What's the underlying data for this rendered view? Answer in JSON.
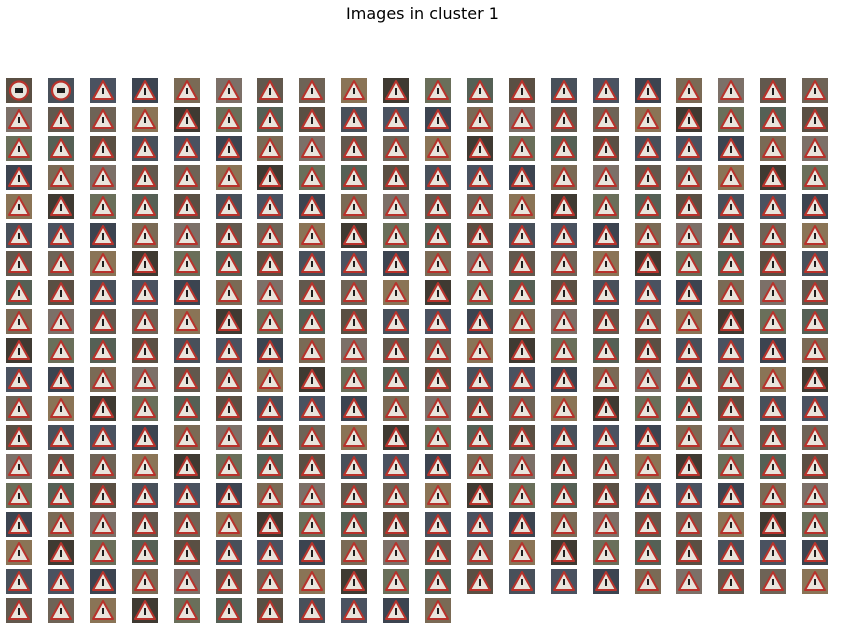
{
  "figure": {
    "title": "Images in cluster 1"
  },
  "grid": {
    "columns": 20,
    "rows": 19,
    "total_images": 371,
    "last_row_count": 11
  },
  "thumbnail_kind": {
    "first_two": "speed-limit-50-sign",
    "rest": "triangular-warning-sign"
  },
  "palette": {
    "backgrounds": [
      "#5a4f43",
      "#6e6356",
      "#4a5260",
      "#3f3a32",
      "#7a6a55",
      "#556055",
      "#62584d",
      "#48505a",
      "#8a7456",
      "#3c4450",
      "#6a6f5a",
      "#7c7068"
    ],
    "sign_border": "#b8322b",
    "sign_fill": "#e9e4dc",
    "symbol": "#1d1d1d"
  }
}
